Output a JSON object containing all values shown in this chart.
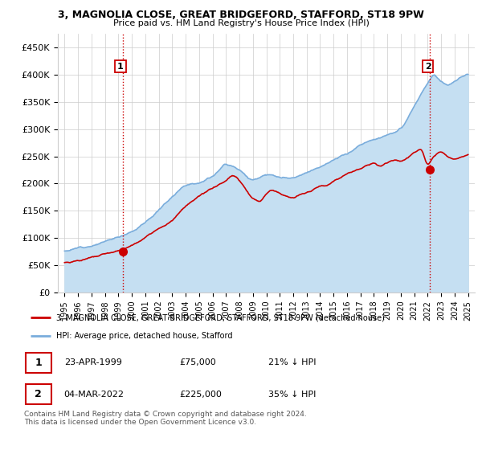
{
  "title1": "3, MAGNOLIA CLOSE, GREAT BRIDGEFORD, STAFFORD, ST18 9PW",
  "title2": "Price paid vs. HM Land Registry's House Price Index (HPI)",
  "ylabel_ticks": [
    "£0",
    "£50K",
    "£100K",
    "£150K",
    "£200K",
    "£250K",
    "£300K",
    "£350K",
    "£400K",
    "£450K"
  ],
  "ytick_values": [
    0,
    50000,
    100000,
    150000,
    200000,
    250000,
    300000,
    350000,
    400000,
    450000
  ],
  "ylim": [
    0,
    475000
  ],
  "xlim_start": 1994.5,
  "xlim_end": 2025.5,
  "sale1_x": 1999.31,
  "sale1_y": 75000,
  "sale1_label": "1",
  "sale2_x": 2022.17,
  "sale2_y": 225000,
  "sale2_label": "2",
  "hpi_color": "#7aaddc",
  "hpi_fill_color": "#c5dff2",
  "price_color": "#cc0000",
  "vline_color": "#cc0000",
  "grid_color": "#cccccc",
  "background_color": "#ffffff",
  "legend_line1": "3, MAGNOLIA CLOSE, GREAT BRIDGEFORD, STAFFORD, ST18 9PW (detached house)",
  "legend_line2": "HPI: Average price, detached house, Stafford",
  "table_row1": [
    "1",
    "23-APR-1999",
    "£75,000",
    "21% ↓ HPI"
  ],
  "table_row2": [
    "2",
    "04-MAR-2022",
    "£225,000",
    "35% ↓ HPI"
  ],
  "footer": "Contains HM Land Registry data © Crown copyright and database right 2024.\nThis data is licensed under the Open Government Licence v3.0.",
  "xlabel_years": [
    "1995",
    "1996",
    "1997",
    "1998",
    "1999",
    "2000",
    "2001",
    "2002",
    "2003",
    "2004",
    "2005",
    "2006",
    "2007",
    "2008",
    "2009",
    "2010",
    "2011",
    "2012",
    "2013",
    "2014",
    "2015",
    "2016",
    "2017",
    "2018",
    "2019",
    "2020",
    "2021",
    "2022",
    "2023",
    "2024",
    "2025"
  ]
}
